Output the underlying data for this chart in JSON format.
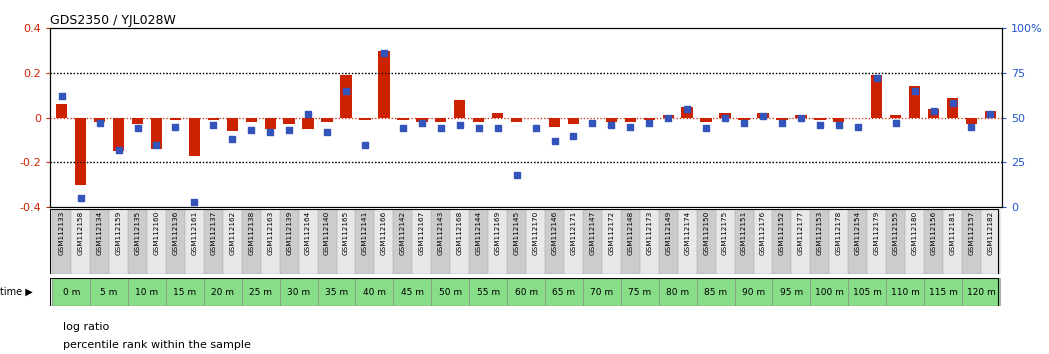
{
  "title": "GDS2350 / YJL028W",
  "gsm_labels": [
    "GSM112133",
    "GSM112158",
    "GSM112134",
    "GSM112159",
    "GSM112135",
    "GSM112160",
    "GSM112136",
    "GSM112161",
    "GSM112137",
    "GSM112162",
    "GSM112138",
    "GSM112163",
    "GSM112139",
    "GSM112164",
    "GSM112140",
    "GSM112165",
    "GSM112141",
    "GSM112166",
    "GSM112142",
    "GSM112167",
    "GSM112143",
    "GSM112168",
    "GSM112144",
    "GSM112169",
    "GSM112145",
    "GSM112170",
    "GSM112146",
    "GSM112171",
    "GSM112147",
    "GSM112172",
    "GSM112148",
    "GSM112173",
    "GSM112149",
    "GSM112174",
    "GSM112150",
    "GSM112175",
    "GSM112151",
    "GSM112176",
    "GSM112152",
    "GSM112177",
    "GSM112153",
    "GSM112178",
    "GSM112154",
    "GSM112179",
    "GSM112155",
    "GSM112180",
    "GSM112156",
    "GSM112181",
    "GSM112157",
    "GSM112182"
  ],
  "time_labels": [
    "0 m",
    "5 m",
    "10 m",
    "15 m",
    "20 m",
    "25 m",
    "30 m",
    "35 m",
    "40 m",
    "45 m",
    "50 m",
    "55 m",
    "60 m",
    "65 m",
    "70 m",
    "75 m",
    "80 m",
    "85 m",
    "90 m",
    "95 m",
    "100 m",
    "105 m",
    "110 m",
    "115 m",
    "120 m"
  ],
  "log_ratio": [
    0.06,
    -0.3,
    -0.02,
    -0.15,
    -0.03,
    -0.14,
    -0.01,
    -0.17,
    -0.01,
    -0.06,
    -0.02,
    -0.05,
    -0.03,
    -0.05,
    -0.02,
    0.19,
    -0.01,
    0.3,
    -0.01,
    -0.02,
    -0.02,
    0.08,
    -0.02,
    0.02,
    -0.02,
    0.0,
    -0.04,
    -0.03,
    0.0,
    -0.02,
    -0.02,
    -0.01,
    0.01,
    0.05,
    -0.02,
    0.02,
    -0.01,
    0.02,
    -0.01,
    0.01,
    -0.01,
    -0.02,
    0.0,
    0.19,
    0.01,
    0.14,
    0.04,
    0.09,
    -0.03,
    0.03
  ],
  "percentile": [
    62,
    5,
    47,
    32,
    44,
    35,
    45,
    3,
    46,
    38,
    43,
    42,
    43,
    52,
    42,
    65,
    35,
    86,
    44,
    47,
    44,
    46,
    44,
    44,
    18,
    44,
    37,
    40,
    47,
    46,
    45,
    47,
    50,
    55,
    44,
    50,
    47,
    51,
    47,
    50,
    46,
    46,
    45,
    72,
    47,
    65,
    54,
    58,
    45,
    52
  ],
  "ylim_left": [
    -0.4,
    0.4
  ],
  "ylim_right": [
    0,
    100
  ],
  "bar_color": "#CC2200",
  "scatter_color": "#3355BB",
  "time_bg_color": "#88DD88",
  "label_bg_color_even": "#cccccc",
  "label_bg_color_odd": "#e8e8e8",
  "right_axis_label_color": "#2255CC",
  "left_axis_label_color": "#CC2200",
  "title_fontsize": 9,
  "axis_fontsize": 8,
  "gsm_fontsize": 5.2,
  "time_fontsize": 6.5
}
